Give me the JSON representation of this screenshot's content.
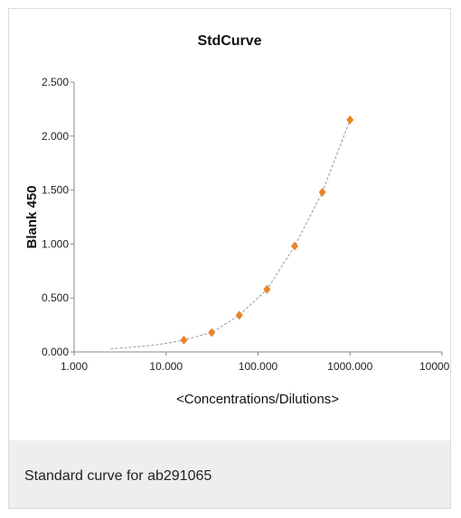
{
  "chart_data": {
    "type": "scatter",
    "title": "StdCurve",
    "xlabel": "<Concentrations/Dilutions>",
    "ylabel": "Blank 450",
    "x_scale": "log",
    "xlim": [
      1,
      10000
    ],
    "ylim": [
      0,
      2.5
    ],
    "x_ticks": [
      1,
      10,
      100,
      1000,
      10000
    ],
    "x_tick_labels": [
      "1.000",
      "10.000",
      "100.000",
      "1000.000",
      "10000.00"
    ],
    "y_ticks": [
      0,
      0.5,
      1.0,
      1.5,
      2.0,
      2.5
    ],
    "y_tick_labels": [
      "0.000",
      "0.500",
      "1.000",
      "1.500",
      "2.000",
      "2.500"
    ],
    "grid": false,
    "legend": "none",
    "series": [
      {
        "marker": "diamond",
        "color": "#e8842a",
        "x": [
          15.6,
          31.3,
          62.5,
          125,
          250,
          500,
          1000
        ],
        "y": [
          0.11,
          0.18,
          0.34,
          0.58,
          0.98,
          1.48,
          2.15
        ]
      }
    ],
    "fit_curve": {
      "style": "dashed",
      "color": "#999999"
    }
  },
  "caption": {
    "text": "Standard curve for ab291065"
  }
}
